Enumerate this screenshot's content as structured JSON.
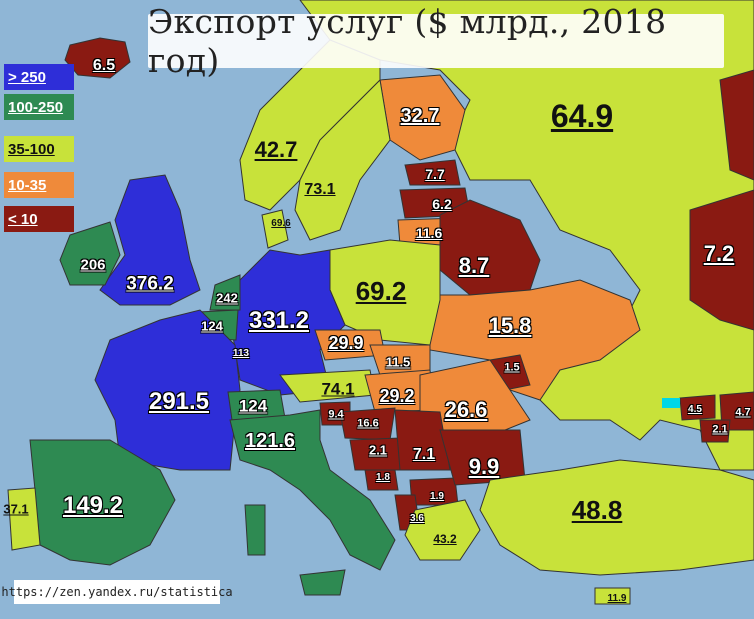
{
  "title": "Экспорт услуг ($ млрд., 2018 год)",
  "source": "https://zen.yandex.ru/statistica",
  "legend": [
    {
      "label": "> 250",
      "color": "#2e2ed8",
      "text": "#ffffff"
    },
    {
      "label": "100-250",
      "color": "#2e8a52",
      "text": "#ffffff"
    },
    {
      "label": "35-100",
      "color": "#c8e23a",
      "text": "#111111"
    },
    {
      "label": "10-35",
      "color": "#ef8a3a",
      "text": "#ffffff"
    },
    {
      "label": "< 10",
      "color": "#8a1a12",
      "text": "#ffffff"
    }
  ],
  "values": {
    "iceland": "6.5",
    "norway": "42.7",
    "sweden": "73.1",
    "finland": "32.7",
    "russia": "64.9",
    "estonia": "7.7",
    "latvia": "6.2",
    "lithuania": "11.6",
    "belarus": "8.7",
    "russia_east": "7.2",
    "denmark": "69.6",
    "ireland": "206",
    "uk": "376.2",
    "netherlands": "242",
    "belgium": "124",
    "luxembourg": "113",
    "germany": "331.2",
    "poland": "69.2",
    "czechia": "29.9",
    "slovakia": "11.5",
    "ukraine": "15.8",
    "moldova": "1.5",
    "france": "291.5",
    "switzerland": "124",
    "austria": "74.1",
    "hungary": "29.2",
    "romania": "26.6",
    "slovenia": "9.4",
    "croatia": "16.6",
    "bosnia": "2.1",
    "serbia": "7.1",
    "montenegro": "1.8",
    "macedonia": "1.9",
    "albania": "3.6",
    "bulgaria": "9.9",
    "italy": "121.6",
    "spain": "149.2",
    "portugal": "37.1",
    "greece": "43.2",
    "turkey": "48.8",
    "cyprus": "11.9",
    "georgia": "4.5",
    "azerbaijan": "4.7",
    "armenia": "2.1"
  }
}
